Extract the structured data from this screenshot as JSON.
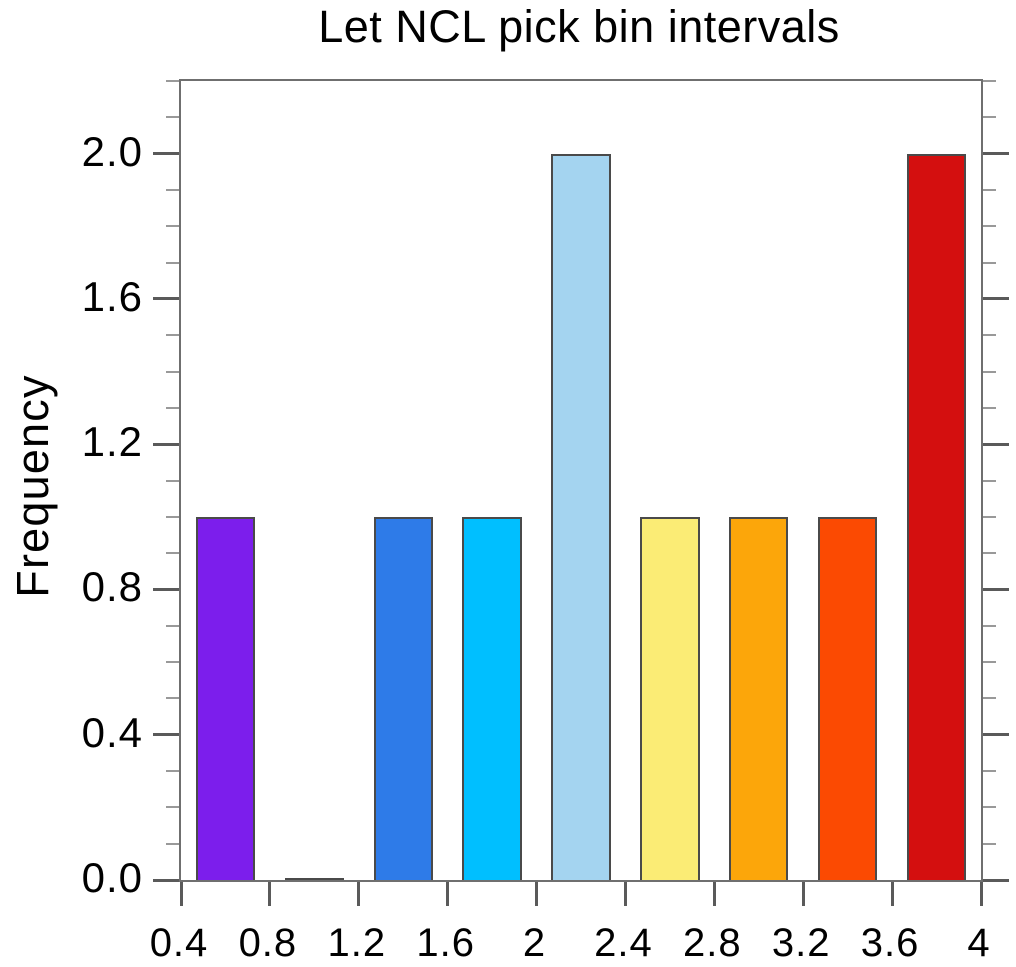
{
  "chart_data": {
    "type": "bar",
    "subtype": "histogram",
    "title": "Let NCL pick bin intervals",
    "xlabel": "",
    "ylabel": "Frequency",
    "bin_edges": [
      0.4,
      0.8,
      1.2,
      1.6,
      2.0,
      2.4,
      2.8,
      3.2,
      3.6,
      4.0
    ],
    "values": [
      1,
      0,
      1,
      1,
      2,
      1,
      1,
      1,
      2
    ],
    "bar_colors": [
      "#7c1eec",
      null,
      "#2e7be8",
      "#00bfff",
      "#a4d4f0",
      "#fbec75",
      "#fca60a",
      "#fb4a02",
      "#d40f0f"
    ],
    "xlim": [
      0.4,
      4.0
    ],
    "ylim": [
      0,
      2.2
    ],
    "x_tick_values": [
      0.4,
      0.8,
      1.2,
      1.6,
      2.0,
      2.4,
      2.8,
      3.2,
      3.6,
      4.0
    ],
    "x_tick_labels": [
      "0.4",
      "0.8",
      "1.2",
      "1.6",
      "2",
      "2.4",
      "2.8",
      "3.2",
      "3.6",
      "4"
    ],
    "y_tick_values": [
      0.0,
      0.4,
      0.8,
      1.2,
      1.6,
      2.0
    ],
    "y_tick_labels": [
      "0.0",
      "0.4",
      "0.8",
      "1.2",
      "1.6",
      "2.0"
    ],
    "y_minor_step": 0.1,
    "grid": false,
    "legend": false,
    "axis_color": "#6f6f6f",
    "major_tick_color": "#5a5a5a",
    "minor_tick_color": "#999999",
    "bar_edge_color": "#4a4a4a",
    "text_color": "#000000"
  }
}
